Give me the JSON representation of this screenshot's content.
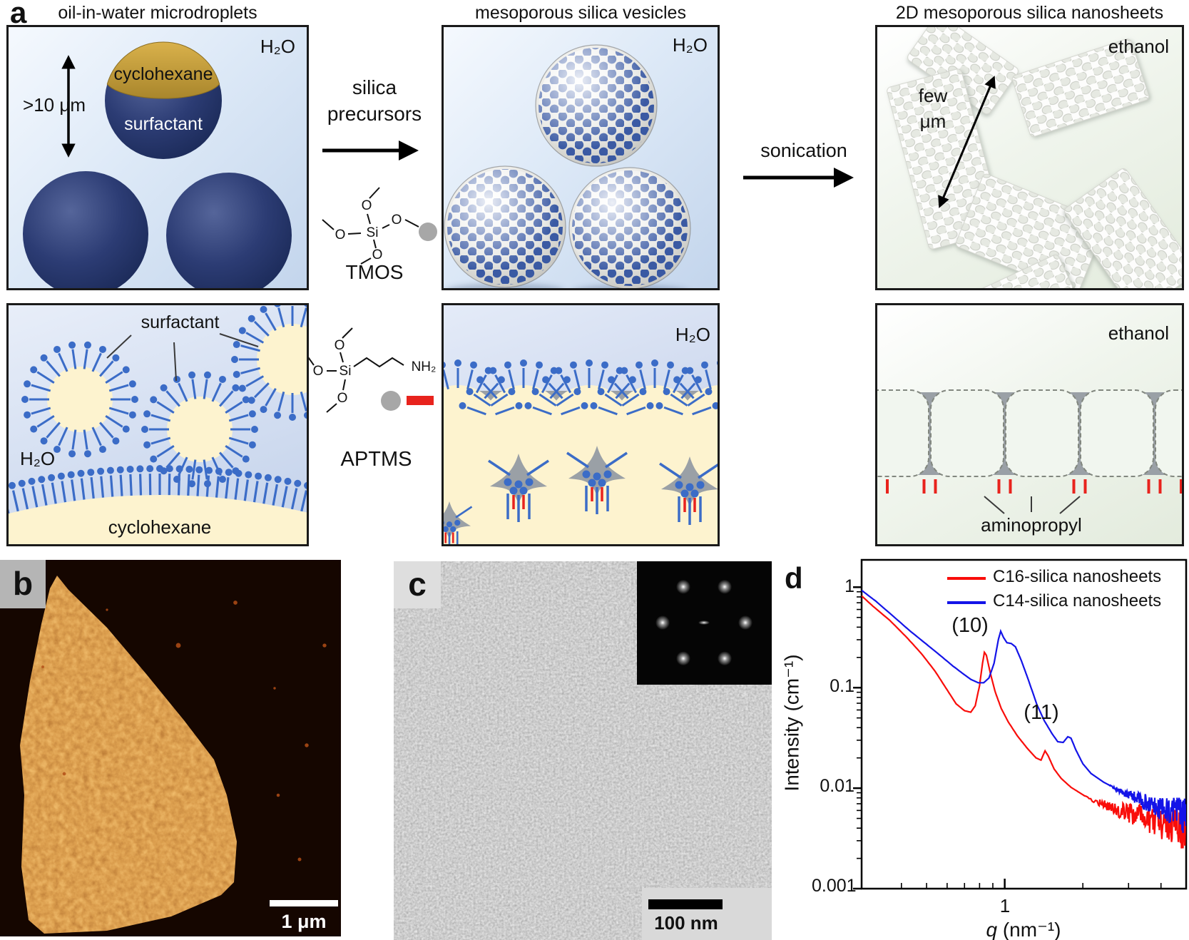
{
  "panels": {
    "a": "a",
    "b": "b",
    "c": "c",
    "d": "d"
  },
  "titles": {
    "microdroplets": "oil-in-water microdroplets",
    "vesicles": "mesoporous silica vesicles",
    "nanosheets": "2D mesoporous silica nanosheets"
  },
  "droplet_box": {
    "solvent": "H₂O",
    "oil": "cyclohexane",
    "shell": "surfactant",
    "size": ">10 μm"
  },
  "step1": {
    "label_line1": "silica",
    "label_line2": "precursors"
  },
  "chem": {
    "tmos": "TMOS",
    "aptms": "APTMS",
    "si": "Si",
    "o": "O",
    "nh2": "NH₂"
  },
  "vesicle_box": {
    "solvent": "H₂O"
  },
  "step2": {
    "label": "sonication"
  },
  "sheet_box": {
    "solvent": "ethanol",
    "size_line1": "few",
    "size_line2": "μm"
  },
  "micelle_box": {
    "label": "surfactant",
    "water": "H₂O",
    "oil": "cyclohexane"
  },
  "interface_box": {
    "water": "H₂O"
  },
  "pore_box": {
    "solvent": "ethanol",
    "label": "aminopropyl"
  },
  "afm": {
    "scale_bar": "1 μm"
  },
  "tem": {
    "scale_bar": "100 nm"
  },
  "colors": {
    "surfactant_blue": "#3b6cc7",
    "silica_gray": "#9aa0a6",
    "aminopropyl_red": "#e8231d",
    "oil_yellow": "#fdf3cf",
    "c16_red": "#f90d0a",
    "c14_blue": "#1414e8"
  },
  "chart_data": {
    "type": "line",
    "xscale": "log",
    "yscale": "log",
    "xlabel_var": "q",
    "xlabel_units": " (nm⁻¹)",
    "ylabel": "Intensity (cm⁻¹)",
    "xlim": [
      0.281,
      5.0
    ],
    "ylim": [
      0.001,
      1.87
    ],
    "x_major_ticks": [
      1
    ],
    "x_tick_labels": [
      "1"
    ],
    "x_minor_ticks": [
      0.4,
      0.5,
      0.6,
      0.7,
      0.8,
      0.9,
      2,
      3,
      4,
      5
    ],
    "y_major_ticks": [
      1,
      0.1,
      0.01,
      0.001
    ],
    "y_tick_labels": [
      "1",
      "0.1",
      "0.01",
      "0.001"
    ],
    "grid": false,
    "legend_position": "top-right",
    "peak_labels": [
      {
        "text": "(10)",
        "q": 0.9
      },
      {
        "text": "(11)",
        "q": 1.6
      }
    ],
    "series": [
      {
        "name": "C16-silica nanosheets",
        "color": "#f90d0a",
        "noise_start": 2.0,
        "noise_amp": 0.5,
        "points": [
          [
            0.281,
            0.82
          ],
          [
            0.31,
            0.65
          ],
          [
            0.36,
            0.47
          ],
          [
            0.42,
            0.315
          ],
          [
            0.48,
            0.215
          ],
          [
            0.54,
            0.145
          ],
          [
            0.6,
            0.095
          ],
          [
            0.65,
            0.069
          ],
          [
            0.7,
            0.059
          ],
          [
            0.74,
            0.057
          ],
          [
            0.77,
            0.066
          ],
          [
            0.8,
            0.105
          ],
          [
            0.82,
            0.17
          ],
          [
            0.835,
            0.225
          ],
          [
            0.85,
            0.21
          ],
          [
            0.88,
            0.14
          ],
          [
            0.92,
            0.09
          ],
          [
            0.97,
            0.062
          ],
          [
            1.03,
            0.046
          ],
          [
            1.12,
            0.033
          ],
          [
            1.22,
            0.025
          ],
          [
            1.32,
            0.02
          ],
          [
            1.38,
            0.019
          ],
          [
            1.43,
            0.0235
          ],
          [
            1.47,
            0.021
          ],
          [
            1.55,
            0.0155
          ],
          [
            1.65,
            0.0125
          ],
          [
            1.8,
            0.0102
          ],
          [
            2.0,
            0.0086
          ],
          [
            2.3,
            0.0072
          ],
          [
            2.7,
            0.0062
          ],
          [
            3.1,
            0.0056
          ],
          [
            3.6,
            0.0051
          ],
          [
            4.1,
            0.0048
          ],
          [
            4.6,
            0.0046
          ],
          [
            5.0,
            0.0045
          ]
        ]
      },
      {
        "name": "C14-silica nanosheets",
        "color": "#1414e8",
        "noise_start": 2.5,
        "noise_amp": 0.4,
        "points": [
          [
            0.281,
            0.93
          ],
          [
            0.32,
            0.72
          ],
          [
            0.37,
            0.52
          ],
          [
            0.43,
            0.37
          ],
          [
            0.5,
            0.27
          ],
          [
            0.57,
            0.205
          ],
          [
            0.63,
            0.165
          ],
          [
            0.69,
            0.138
          ],
          [
            0.74,
            0.121
          ],
          [
            0.79,
            0.112
          ],
          [
            0.83,
            0.112
          ],
          [
            0.87,
            0.125
          ],
          [
            0.91,
            0.175
          ],
          [
            0.945,
            0.3
          ],
          [
            0.965,
            0.365
          ],
          [
            0.99,
            0.315
          ],
          [
            1.02,
            0.28
          ],
          [
            1.06,
            0.275
          ],
          [
            1.1,
            0.255
          ],
          [
            1.16,
            0.185
          ],
          [
            1.24,
            0.115
          ],
          [
            1.33,
            0.068
          ],
          [
            1.42,
            0.047
          ],
          [
            1.52,
            0.035
          ],
          [
            1.6,
            0.029
          ],
          [
            1.68,
            0.0285
          ],
          [
            1.75,
            0.0325
          ],
          [
            1.8,
            0.0315
          ],
          [
            1.88,
            0.024
          ],
          [
            2.0,
            0.0175
          ],
          [
            2.15,
            0.014
          ],
          [
            2.4,
            0.0115
          ],
          [
            2.7,
            0.0098
          ],
          [
            3.0,
            0.0086
          ],
          [
            3.4,
            0.0075
          ],
          [
            3.8,
            0.0068
          ],
          [
            4.2,
            0.0063
          ],
          [
            4.6,
            0.006
          ],
          [
            5.0,
            0.0057
          ]
        ]
      }
    ]
  }
}
